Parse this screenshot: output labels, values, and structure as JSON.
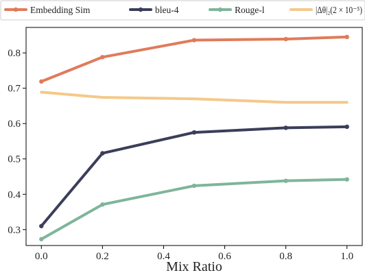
{
  "chart_data": {
    "type": "line",
    "xlabel": "Mix Ratio",
    "ylabel": "",
    "xlim": [
      -0.05,
      1.05
    ],
    "ylim": [
      0.255,
      0.872
    ],
    "xticks": [
      0.0,
      0.2,
      0.4,
      0.6,
      0.8,
      1.0
    ],
    "xtick_labels": [
      "0.0",
      "0.2",
      "0.4",
      "0.6",
      "0.8",
      "1.0"
    ],
    "yticks": [
      0.3,
      0.4,
      0.5,
      0.6,
      0.7,
      0.8
    ],
    "ytick_labels": [
      "0.3",
      "0.4",
      "0.5",
      "0.6",
      "0.7",
      "0.8"
    ],
    "grid": false,
    "legend_placement": "top, outside plot, single row",
    "x": [
      0.0,
      0.2,
      0.5,
      0.8,
      1.0
    ],
    "series": [
      {
        "name": "Embedding Sim",
        "legend_label": "Embedding Sim",
        "color": "#e07b5a",
        "markers": true,
        "values": [
          0.719,
          0.788,
          0.836,
          0.839,
          0.845
        ]
      },
      {
        "name": "bleu-4",
        "legend_label": "bleu-4",
        "color": "#3b3e5a",
        "markers": true,
        "values": [
          0.31,
          0.516,
          0.575,
          0.588,
          0.591
        ]
      },
      {
        "name": "Rouge-l",
        "legend_label": "Rouge-l",
        "color": "#7fb59a",
        "markers": true,
        "values": [
          0.273,
          0.371,
          0.424,
          0.438,
          0.442
        ]
      },
      {
        "name": "|Δθ|2(2×10^-5)",
        "legend_label": "|Δθ|₂(2 × 10⁻⁵)",
        "color": "#f4c98a",
        "markers": false,
        "values": [
          0.689,
          0.674,
          0.67,
          0.66,
          0.66
        ]
      }
    ]
  }
}
